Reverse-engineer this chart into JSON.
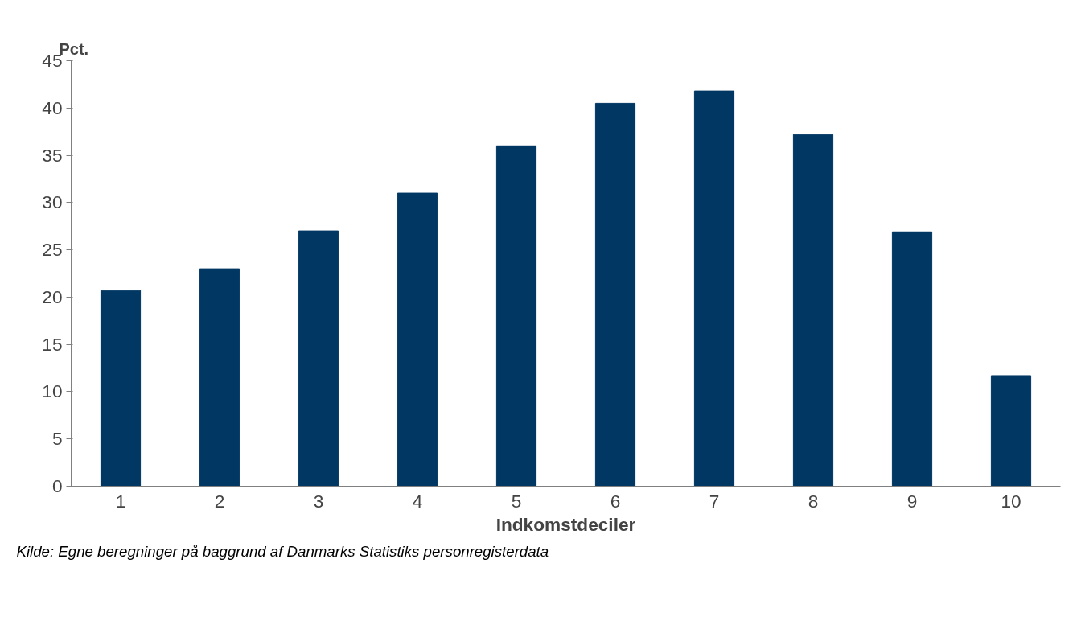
{
  "chart_data": {
    "type": "bar",
    "xlabel": "Indkomstdeciler",
    "ylabel": "Pct.",
    "categories": [
      "1",
      "2",
      "3",
      "4",
      "5",
      "6",
      "7",
      "8",
      "9",
      "10"
    ],
    "values": [
      20.7,
      23.0,
      27.0,
      31.0,
      36.0,
      40.5,
      41.8,
      37.2,
      26.9,
      11.7
    ],
    "color": "#003763",
    "ylim": [
      0,
      45
    ],
    "yticks": [
      0,
      5,
      10,
      15,
      20,
      25,
      30,
      35,
      40,
      45
    ],
    "grid": false,
    "annotations": [
      "Kilde: Egne beregninger på baggrund af Danmarks Statistiks personregisterdata"
    ]
  }
}
